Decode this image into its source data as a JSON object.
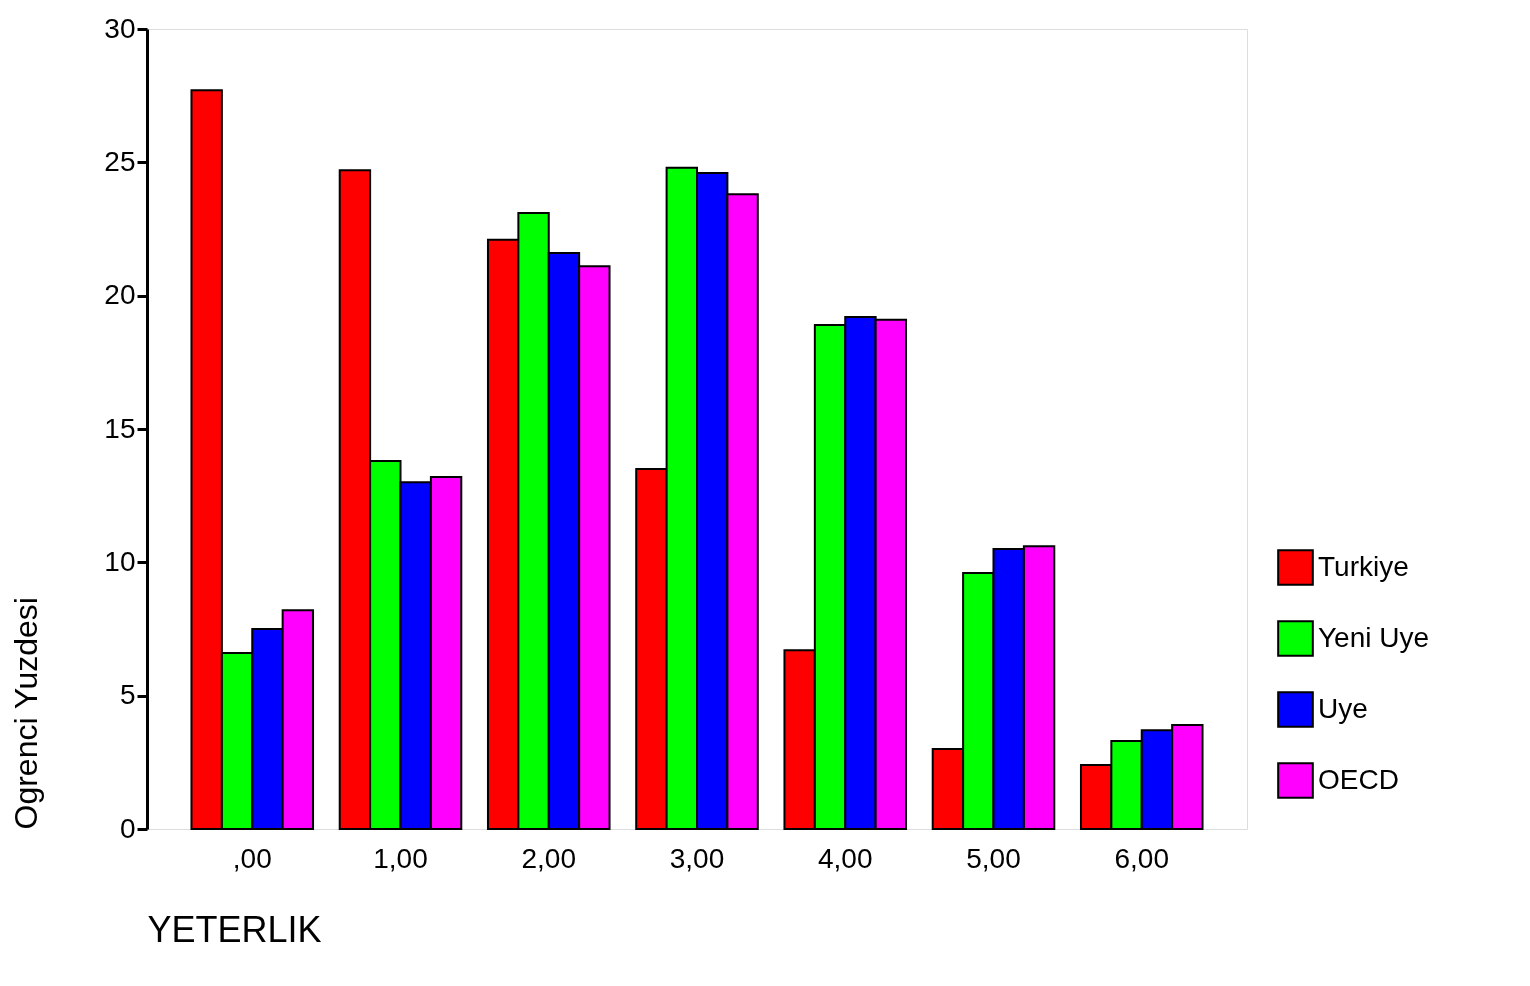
{
  "chart_data": {
    "type": "bar",
    "xlabel": "YETERLIK",
    "ylabel": "Ogrenci Yuzdesi",
    "categories": [
      ",00",
      "1,00",
      "2,00",
      "3,00",
      "4,00",
      "5,00",
      "6,00"
    ],
    "series": [
      {
        "name": "Turkiye",
        "color": "#ff0000",
        "values": [
          27.7,
          24.7,
          22.1,
          13.5,
          6.7,
          3.0,
          2.4
        ]
      },
      {
        "name": "Yeni Uye",
        "color": "#00ff00",
        "values": [
          6.6,
          13.8,
          23.1,
          24.8,
          18.9,
          9.6,
          3.3
        ]
      },
      {
        "name": "Uye",
        "color": "#0000ff",
        "values": [
          7.5,
          13.0,
          21.6,
          24.6,
          19.2,
          10.5,
          3.7
        ]
      },
      {
        "name": "OECD",
        "color": "#ff00ff",
        "values": [
          8.2,
          13.2,
          21.1,
          23.8,
          19.1,
          10.6,
          3.9
        ]
      }
    ],
    "ylim": [
      0,
      30
    ],
    "yticks": [
      0,
      5,
      10,
      15,
      20,
      25,
      30
    ],
    "grid": false,
    "legend": "right"
  }
}
